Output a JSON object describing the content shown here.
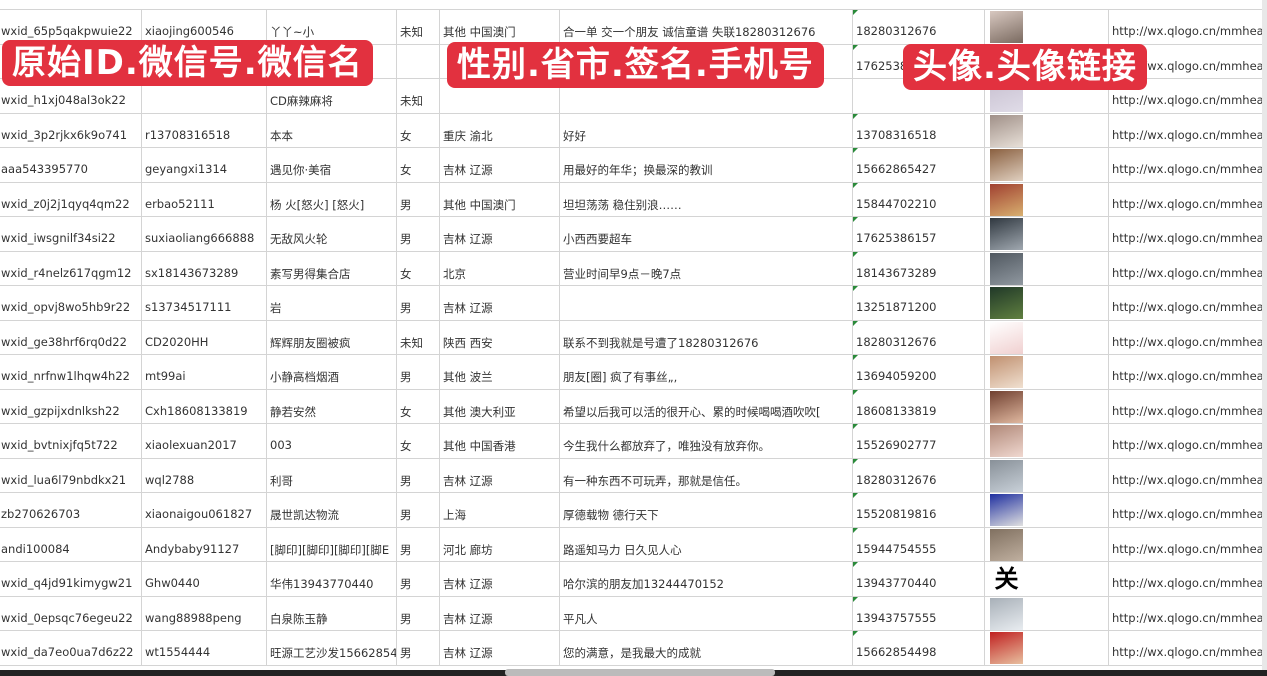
{
  "overlay_labels": [
    "原始ID.微信号.微信名",
    "性别.省市.签名.手机号",
    "头像.头像链接"
  ],
  "colors": {
    "overlay": "#e2313f",
    "grid": "#d4d4d4",
    "comment_marker": "#2a8a3a"
  },
  "rows": [
    {
      "id": "wxid_65p5qakpwuie22",
      "wechat": "xiaojing600546",
      "name": "丫丫~小",
      "gender": "未知",
      "region": "其他 中国澳门",
      "signature": "合一单 交一个朋友 诚信童谱 失联18280312676",
      "phone": "18280312676",
      "url": "http://wx.qlogo.cn/mmhead",
      "avatar": [
        "#d8c8c0",
        "#7a6a60"
      ]
    },
    {
      "id": "",
      "wechat": "",
      "name": "",
      "gender": "",
      "region": "",
      "signature": "",
      "phone": "17625386",
      "url": "http://wx.qlogo.cn/mmhead",
      "avatar": [
        "#4a5a8a",
        "#c0c8d8"
      ]
    },
    {
      "id": "wxid_h1xj048al3ok22",
      "wechat": "",
      "name": "CD麻辣麻将",
      "gender": "未知",
      "region": "",
      "signature": "",
      "phone": "",
      "url": "http://wx.qlogo.cn/mmhead",
      "avatar": [
        "#c8c0d0",
        "#e0dce8"
      ]
    },
    {
      "id": "wxid_3p2rjkx6k9o741",
      "wechat": "r13708316518",
      "name": "本本",
      "gender": "女",
      "region": "重庆 渝北",
      "signature": "好好",
      "phone": "13708316518",
      "url": "http://wx.qlogo.cn/mmhead",
      "avatar": [
        "#a09088",
        "#e8e0d8"
      ]
    },
    {
      "id": "aaa543395770",
      "wechat": "geyangxi1314",
      "name": "遇见你·美宿",
      "gender": "女",
      "region": "吉林 辽源",
      "signature": "用最好的年华；换最深的教训",
      "phone": "15662865427",
      "url": "http://wx.qlogo.cn/mmhead",
      "avatar": [
        "#8a6040",
        "#e0d0c0"
      ]
    },
    {
      "id": "wxid_z0j2j1qyq4qm22",
      "wechat": "erbao52111",
      "name": "杨 火[怒火] [怒火]",
      "gender": "男",
      "region": "其他 中国澳门",
      "signature": "坦坦荡荡 稳住别浪……",
      "phone": "15844702210",
      "url": "http://wx.qlogo.cn/mmhead",
      "avatar": [
        "#a04030",
        "#d8b070"
      ]
    },
    {
      "id": "wxid_iwsgnilf34si22",
      "wechat": "suxiaoliang666888",
      "name": "无敌风火轮",
      "gender": "男",
      "region": "吉林 辽源",
      "signature": "小西西要超车",
      "phone": "17625386157",
      "url": "http://wx.qlogo.cn/mmhead",
      "avatar": [
        "#303840",
        "#a0a8b0"
      ]
    },
    {
      "id": "wxid_r4nelz617qgm12",
      "wechat": "sx18143673289",
      "name": "素写男得集合店",
      "gender": "女",
      "region": "北京",
      "signature": "营业时间早9点－晚7点",
      "phone": "18143673289",
      "url": "http://wx.qlogo.cn/mmhead",
      "avatar": [
        "#505860",
        "#9098a0"
      ]
    },
    {
      "id": "wxid_opvj8wo5hb9r22",
      "wechat": "s13734517111",
      "name": "岩",
      "gender": "男",
      "region": "吉林 辽源",
      "signature": "",
      "phone": "13251871200",
      "url": "http://wx.qlogo.cn/mmhead",
      "avatar": [
        "#203828",
        "#608040"
      ]
    },
    {
      "id": "wxid_ge38hrf6rq0d22",
      "wechat": "CD2020HH",
      "name": "辉辉朋友圈被疯",
      "gender": "未知",
      "region": "陕西 西安",
      "signature": "联系不到我就是号遭了18280312676",
      "phone": "18280312676",
      "url": "http://wx.qlogo.cn/mmhead",
      "avatar": [
        "#ffffff",
        "#f0d0d0"
      ]
    },
    {
      "id": "wxid_nrfnw1lhqw4h22",
      "wechat": "mt99ai",
      "name": "小静高档烟酒",
      "gender": "男",
      "region": "其他 波兰",
      "signature": "朋友[圈] 疯了有事丝„,",
      "phone": "13694059200",
      "url": "http://wx.qlogo.cn/mmhead",
      "avatar": [
        "#c09070",
        "#f0e0d0"
      ]
    },
    {
      "id": "wxid_gzpijxdnlksh22",
      "wechat": "Cxh18608133819",
      "name": "静若安然",
      "gender": "女",
      "region": "其他 澳大利亚",
      "signature": "希望以后我可以活的很开心、累的时候喝喝酒吹吹[",
      "phone": "18608133819",
      "url": "http://wx.qlogo.cn/mmhead",
      "avatar": [
        "#704030",
        "#e0b8a0"
      ]
    },
    {
      "id": "wxid_bvtnixjfq5t722",
      "wechat": "xiaolexuan2017",
      "name": "003",
      "gender": "女",
      "region": "其他 中国香港",
      "signature": "今生我什么都放弃了，唯独没有放弃你。",
      "phone": "15526902777",
      "url": "http://wx.qlogo.cn/mmhead",
      "avatar": [
        "#b08878",
        "#f0d8d0"
      ]
    },
    {
      "id": "wxid_lua6l79nbdkx21",
      "wechat": "wql2788",
      "name": "利哥",
      "gender": "男",
      "region": "吉林 辽源",
      "signature": "有一种东西不可玩弄，那就是信任。",
      "phone": "18280312676",
      "url": "http://wx.qlogo.cn/mmhead",
      "avatar": [
        "#889098",
        "#c8d0d8"
      ]
    },
    {
      "id": "zb270626703",
      "wechat": "xiaonaigou061827",
      "name": "晟世凯达物流",
      "gender": "男",
      "region": "上海",
      "signature": "厚德载物 德行天下",
      "phone": "15520819816",
      "url": "http://wx.qlogo.cn/mmhead",
      "avatar": [
        "#2030a0",
        "#e0e0e0"
      ]
    },
    {
      "id": "andi100084",
      "wechat": "Andybaby91127",
      "name": "[脚印][脚印][脚印][脚E",
      "gender": "男",
      "region": "河北 廊坊",
      "signature": "路遥知马力 日久见人心",
      "phone": "15944754555",
      "url": "http://wx.qlogo.cn/mmhead",
      "avatar": [
        "#807060",
        "#c0b0a0"
      ]
    },
    {
      "id": "wxid_q4jd91kimygw21",
      "wechat": "Ghw0440",
      "name": "华伟13943770440",
      "gender": "男",
      "region": "吉林 辽源",
      "signature": "哈尔滨的朋友加13244470152",
      "phone": "13943770440",
      "url": "http://wx.qlogo.cn/mmhead",
      "avatar": [
        "#ffffff",
        "#ffffff"
      ],
      "avatar_glyph": "关"
    },
    {
      "id": "wxid_0epsqc76egeu22",
      "wechat": "wang88988peng",
      "name": "白泉陈玉静",
      "gender": "男",
      "region": "吉林 辽源",
      "signature": "平凡人",
      "phone": "13943757555",
      "url": "http://wx.qlogo.cn/mmhead",
      "avatar": [
        "#a8b0b8",
        "#e8ecf0"
      ]
    },
    {
      "id": "wxid_da7eo0ua7d6z22",
      "wechat": "wt1554444",
      "name": "旺源工艺沙发15662854",
      "gender": "男",
      "region": "吉林 辽源",
      "signature": "您的满意，是我最大的成就",
      "phone": "15662854498",
      "url": "http://wx.qlogo.cn/mmhead",
      "avatar": [
        "#c02020",
        "#e8c0a0"
      ]
    }
  ]
}
